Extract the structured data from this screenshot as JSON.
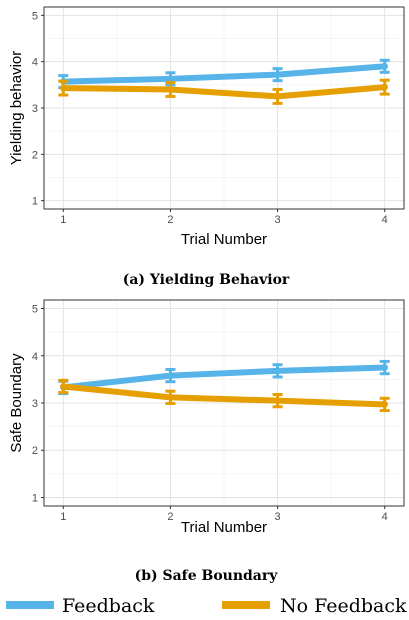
{
  "chart_data": [
    {
      "type": "line",
      "caption": "(a) Yielding Behavior",
      "xlabel": "Trial Number",
      "ylabel": "Yielding behavior",
      "x": [
        1,
        2,
        3,
        4
      ],
      "xlim": [
        1,
        4
      ],
      "ylim": [
        1,
        5
      ],
      "yticks": [
        1,
        2,
        3,
        4,
        5
      ],
      "grid": true,
      "series": [
        {
          "name": "Feedback",
          "values": [
            3.57,
            3.63,
            3.72,
            3.9
          ],
          "err": [
            0.13,
            0.13,
            0.13,
            0.13
          ],
          "color": "#56b4e9"
        },
        {
          "name": "No Feedback",
          "values": [
            3.43,
            3.4,
            3.25,
            3.45
          ],
          "err": [
            0.15,
            0.15,
            0.15,
            0.15
          ],
          "color": "#e69f00"
        }
      ]
    },
    {
      "type": "line",
      "caption": "(b) Safe Boundary",
      "xlabel": "Trial Number",
      "ylabel": "Safe Boundary",
      "x": [
        1,
        2,
        3,
        4
      ],
      "xlim": [
        1,
        4
      ],
      "ylim": [
        1,
        5
      ],
      "yticks": [
        1,
        2,
        3,
        4,
        5
      ],
      "grid": true,
      "series": [
        {
          "name": "Feedback",
          "values": [
            3.33,
            3.58,
            3.68,
            3.75
          ],
          "err": [
            0.13,
            0.13,
            0.13,
            0.13
          ],
          "color": "#56b4e9"
        },
        {
          "name": "No Feedback",
          "values": [
            3.35,
            3.12,
            3.05,
            2.97
          ],
          "err": [
            0.13,
            0.13,
            0.13,
            0.13
          ],
          "color": "#e69f00"
        }
      ]
    }
  ],
  "legend": {
    "placement": "bottom",
    "items": [
      {
        "label": "Feedback",
        "color": "#56b4e9"
      },
      {
        "label": "No Feedback",
        "color": "#e69f00"
      }
    ]
  }
}
